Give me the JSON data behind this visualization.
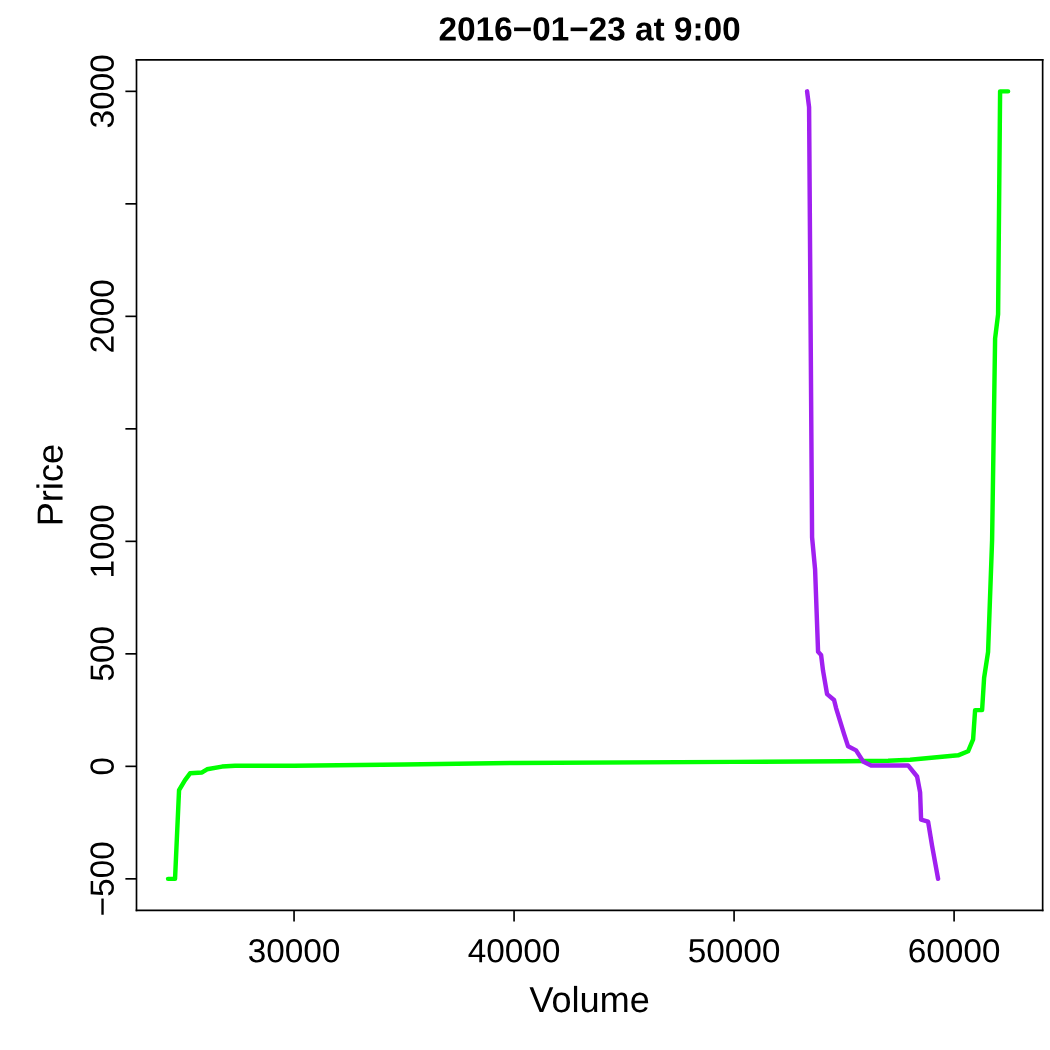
{
  "chart_data": {
    "type": "line",
    "title": "2016−01−23 at 9:00",
    "xlabel": "Volume",
    "ylabel": "Price",
    "xlim": [
      22839,
      64025
    ],
    "xticks": [
      30000,
      40000,
      50000,
      60000
    ],
    "ylim": [
      -640,
      3140
    ],
    "yticks": [
      {
        "value": -500,
        "label": "−500"
      },
      0,
      500,
      1000,
      {
        "value": 1500,
        "label": null
      },
      2000,
      {
        "value": 2500,
        "label": null
      },
      3000
    ],
    "grid": false,
    "legend": false,
    "marker": "none",
    "line_style": "solid",
    "series": [
      {
        "color": "#00ff00",
        "x": [
          24273,
          24591,
          24773,
          25045,
          25273,
          25818,
          26045,
          26727,
          27318,
          30000,
          35000,
          40000,
          50000,
          55000,
          57000,
          58000,
          60182,
          60636,
          60864,
          60955,
          61273,
          61364,
          61545,
          61727,
          61864,
          62000,
          62091,
          62455
        ],
        "values": [
          -500,
          -500,
          -106,
          -61,
          -31,
          -27,
          -13,
          -1,
          3,
          3,
          8,
          15,
          20,
          23,
          25,
          29,
          49,
          67,
          120,
          250,
          250,
          393,
          509,
          1004,
          1902,
          2009,
          3000,
          3000
        ]
      },
      {
        "color": "#a020f0",
        "x": [
          53318,
          53409,
          53545,
          53682,
          53818,
          53955,
          54045,
          54227,
          54545,
          54636,
          54818,
          55000,
          55182,
          55545,
          55864,
          56227,
          57909,
          58318,
          58455,
          58500,
          58818,
          59000,
          59273
        ],
        "values": [
          3000,
          2929,
          1018,
          875,
          509,
          495,
          424,
          321,
          295,
          259,
          201,
          143,
          89,
          71,
          22,
          4,
          4,
          -45,
          -116,
          -237,
          -246,
          -353,
          -500
        ]
      }
    ]
  }
}
